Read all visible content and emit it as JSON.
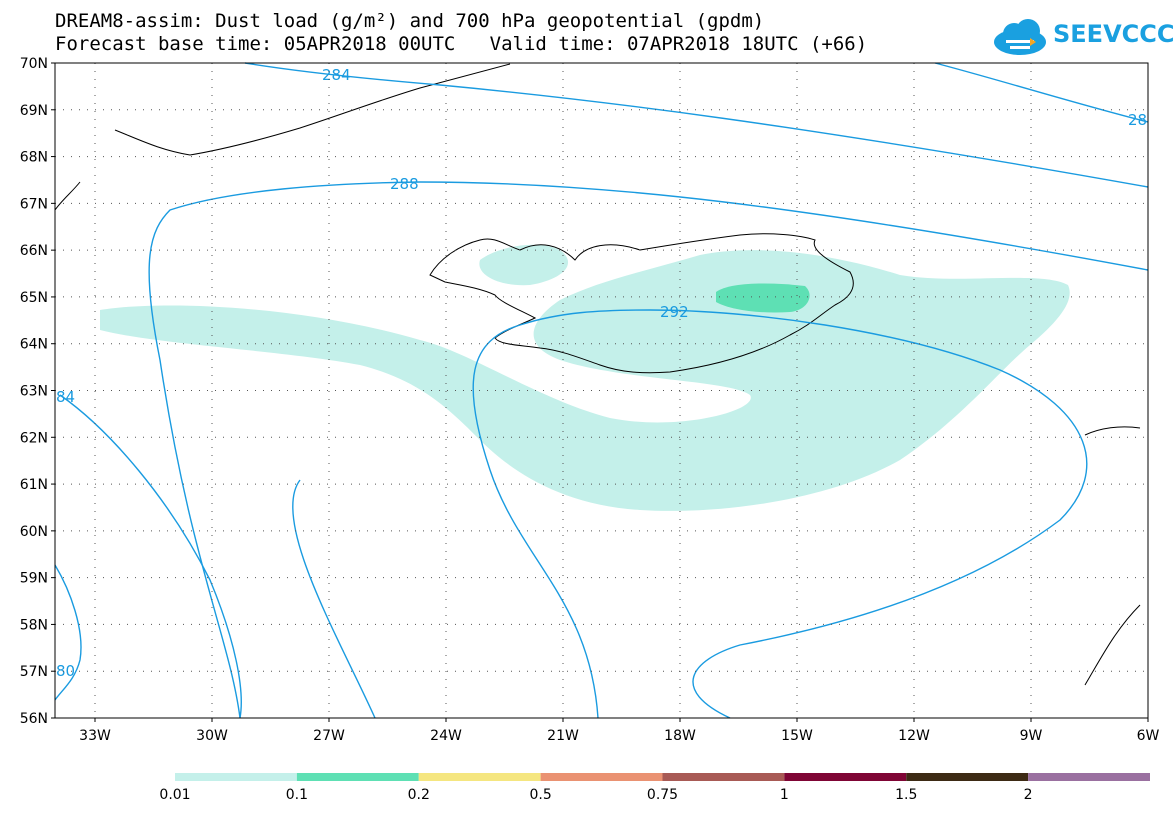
{
  "header": {
    "title_line1": "DREAM8-assim: Dust load (g/m²) and 700 hPa geopotential (gpdm)",
    "title_line2": "Forecast base time: 05APR2018 00UTC   Valid time: 07APR2018 18UTC (+66)",
    "logo_text": "SEEVCCC"
  },
  "axes": {
    "lat_labels": [
      "70N",
      "69N",
      "68N",
      "67N",
      "66N",
      "65N",
      "64N",
      "63N",
      "62N",
      "61N",
      "60N",
      "59N",
      "58N",
      "57N",
      "56N"
    ],
    "lon_labels": [
      "33W",
      "30W",
      "27W",
      "24W",
      "21W",
      "18W",
      "15W",
      "12W",
      "9W",
      "6W"
    ]
  },
  "contours": {
    "labels": [
      "284",
      "288",
      "292",
      "28",
      "84",
      "80"
    ]
  },
  "colorbar": {
    "colors": [
      "#c4f0ea",
      "#5ee0b4",
      "#f5e680",
      "#ea9272",
      "#a85a55",
      "#7f0535",
      "#3d2a14",
      "#9a70a0"
    ],
    "labels": [
      "0.01",
      "0.1",
      "0.2",
      "0.5",
      "0.75",
      "1",
      "1.5",
      "2"
    ]
  },
  "colors": {
    "dust_light": "#c4f0ea",
    "dust_mid": "#5ee0b4",
    "contour": "#1a9be0"
  },
  "icons": [
    "cloud-logo-icon"
  ]
}
